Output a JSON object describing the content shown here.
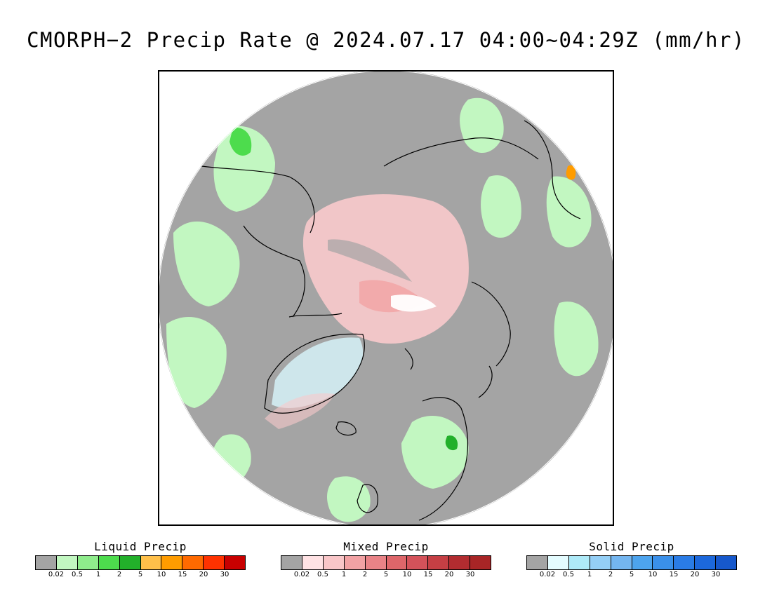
{
  "title": "CMORPH−2 Precip Rate @ 2024.07.17 04:00~04:29Z (mm/hr)",
  "map": {
    "projection": "polar stereographic (north pole)",
    "background_color": "#a4a4a4",
    "coastline_color": "#000000"
  },
  "legends": [
    {
      "id": "liquid",
      "title": "Liquid Precip",
      "colors": [
        "#a4a4a4",
        "#c2f7c1",
        "#8fec8c",
        "#4ddc4d",
        "#22b02a",
        "#ffc04a",
        "#ff9c00",
        "#ff6a00",
        "#ff3200",
        "#c80000"
      ],
      "ticks": [
        "0.02",
        "0.5",
        "1",
        "2",
        "5",
        "10",
        "15",
        "20",
        "30"
      ]
    },
    {
      "id": "mixed",
      "title": "Mixed Precip",
      "colors": [
        "#a4a4a4",
        "#ffe2e4",
        "#f9c6c8",
        "#f2a2a4",
        "#e98387",
        "#de666a",
        "#d4525a",
        "#c53f44",
        "#b22c30",
        "#a82526"
      ],
      "ticks": [
        "0.02",
        "0.5",
        "1",
        "2",
        "5",
        "10",
        "15",
        "20",
        "30"
      ]
    },
    {
      "id": "solid",
      "title": "Solid Precip",
      "colors": [
        "#a4a4a4",
        "#e4fcff",
        "#aeeaf8",
        "#94cff6",
        "#74b6f0",
        "#4da4ee",
        "#3a90ea",
        "#2a7ce6",
        "#1c68dc",
        "#1658cc"
      ],
      "ticks": [
        "0.02",
        "0.5",
        "1",
        "2",
        "5",
        "10",
        "15",
        "20",
        "30"
      ]
    }
  ]
}
